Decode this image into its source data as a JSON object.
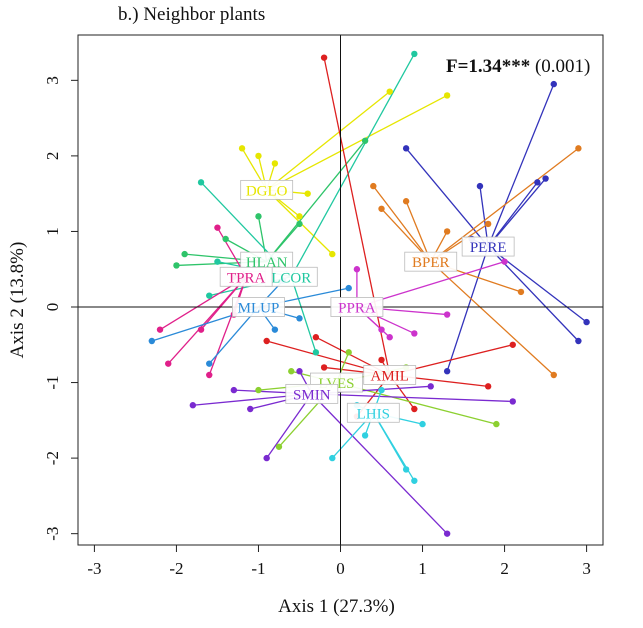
{
  "panel_title": "b.) Neighbor plants",
  "stat": {
    "f_label": "F=1.34",
    "stars": "***",
    "p_value": "(0.001)"
  },
  "chart_data": {
    "type": "scatter",
    "subtype": "ordination-spider-plot",
    "title": "",
    "xlabel": "Axis 1 (27.3%)",
    "ylabel": "Axis 2 (13.8%)",
    "xlim": [
      -3.2,
      3.2
    ],
    "ylim": [
      -3.15,
      3.6
    ],
    "x_ticks": [
      -3,
      -2,
      -1,
      0,
      1,
      2,
      3
    ],
    "y_ticks": [
      -3,
      -2,
      -1,
      0,
      1,
      2,
      3
    ],
    "x_tick_labels": [
      "-3",
      "-2",
      "-1",
      "0",
      "1",
      "2",
      "3"
    ],
    "y_tick_labels": [
      "-3",
      "-2",
      "-1",
      "0",
      "1",
      "2",
      "3"
    ],
    "reference_lines": {
      "x": 0,
      "y": 0
    },
    "grid": false,
    "series": [
      {
        "name": "DGLO",
        "color": "#e6e600",
        "centroid": [
          -0.9,
          1.55
        ],
        "points": [
          [
            -1.2,
            2.1
          ],
          [
            -1.0,
            2.0
          ],
          [
            -0.8,
            1.9
          ],
          [
            -0.4,
            1.5
          ],
          [
            -0.5,
            1.2
          ],
          [
            -0.1,
            0.7
          ],
          [
            1.3,
            2.8
          ],
          [
            0.6,
            2.85
          ]
        ]
      },
      {
        "name": "PERE",
        "color": "#3333bb",
        "centroid": [
          1.8,
          0.8
        ],
        "points": [
          [
            0.8,
            2.1
          ],
          [
            1.7,
            1.6
          ],
          [
            2.6,
            2.95
          ],
          [
            2.4,
            1.65
          ],
          [
            2.5,
            1.7
          ],
          [
            2.9,
            -0.45
          ],
          [
            3.0,
            -0.2
          ],
          [
            1.3,
            -0.85
          ],
          [
            1.6,
            0.9
          ]
        ]
      },
      {
        "name": "BPER",
        "color": "#e07b20",
        "centroid": [
          1.1,
          0.6
        ],
        "points": [
          [
            0.4,
            1.6
          ],
          [
            0.5,
            1.3
          ],
          [
            0.8,
            1.4
          ],
          [
            2.9,
            2.1
          ],
          [
            2.2,
            0.2
          ],
          [
            2.6,
            -0.9
          ],
          [
            1.3,
            1.0
          ],
          [
            1.8,
            1.1
          ]
        ]
      },
      {
        "name": "HLAN",
        "color": "#2ec46a",
        "centroid": [
          -0.9,
          0.6
        ],
        "points": [
          [
            -1.9,
            0.7
          ],
          [
            -2.0,
            0.55
          ],
          [
            -1.4,
            0.9
          ],
          [
            -1.0,
            1.2
          ],
          [
            -0.5,
            1.1
          ],
          [
            0.3,
            2.2
          ]
        ]
      },
      {
        "name": "LCOR",
        "color": "#20c8a0",
        "centroid": [
          -0.6,
          0.4
        ],
        "points": [
          [
            -1.7,
            1.65
          ],
          [
            -1.5,
            0.6
          ],
          [
            0.9,
            3.35
          ],
          [
            -1.6,
            0.15
          ],
          [
            -0.3,
            -0.6
          ]
        ]
      },
      {
        "name": "TPRA",
        "color": "#e0208a",
        "centroid": [
          -1.15,
          0.4
        ],
        "points": [
          [
            -2.2,
            -0.3
          ],
          [
            -2.1,
            -0.75
          ],
          [
            -1.5,
            1.05
          ],
          [
            -1.3,
            0.4
          ],
          [
            -1.7,
            -0.3
          ],
          [
            -1.3,
            -0.1
          ],
          [
            -1.6,
            -0.9
          ]
        ]
      },
      {
        "name": "MLUP",
        "color": "#2a8ad8",
        "centroid": [
          -1.0,
          0.0
        ],
        "points": [
          [
            -2.3,
            -0.45
          ],
          [
            -1.6,
            -0.75
          ],
          [
            -0.7,
            0.35
          ],
          [
            -0.8,
            -0.3
          ],
          [
            -0.5,
            -0.15
          ],
          [
            0.1,
            0.25
          ]
        ]
      },
      {
        "name": "PPRA",
        "color": "#cc33cc",
        "centroid": [
          0.2,
          0.0
        ],
        "points": [
          [
            0.2,
            0.5
          ],
          [
            0.6,
            -0.4
          ],
          [
            0.9,
            -0.35
          ],
          [
            1.3,
            -0.1
          ],
          [
            2.0,
            0.6
          ],
          [
            0.5,
            -0.3
          ]
        ]
      },
      {
        "name": "AMIL",
        "color": "#dd2020",
        "centroid": [
          0.6,
          -0.9
        ],
        "points": [
          [
            -0.2,
            3.3
          ],
          [
            -0.9,
            -0.45
          ],
          [
            -0.3,
            -0.4
          ],
          [
            0.5,
            -0.7
          ],
          [
            2.1,
            -0.5
          ],
          [
            1.8,
            -1.05
          ],
          [
            0.2,
            -1.45
          ],
          [
            0.9,
            -1.35
          ],
          [
            -0.2,
            -0.8
          ]
        ]
      },
      {
        "name": "LVES",
        "color": "#8cd030",
        "centroid": [
          -0.05,
          -1.0
        ],
        "points": [
          [
            -1.0,
            -1.1
          ],
          [
            -0.6,
            -0.85
          ],
          [
            0.1,
            -0.6
          ],
          [
            0.8,
            -0.8
          ],
          [
            1.9,
            -1.55
          ],
          [
            -0.75,
            -1.85
          ]
        ]
      },
      {
        "name": "SMIN",
        "color": "#7a2ad0",
        "centroid": [
          -0.35,
          -1.15
        ],
        "points": [
          [
            -1.8,
            -1.3
          ],
          [
            -1.3,
            -1.1
          ],
          [
            -1.1,
            -1.35
          ],
          [
            -0.5,
            -0.85
          ],
          [
            1.1,
            -1.05
          ],
          [
            2.1,
            -1.25
          ],
          [
            1.3,
            -3.0
          ],
          [
            -0.9,
            -2.0
          ]
        ]
      },
      {
        "name": "LHIS",
        "color": "#30d0e0",
        "centroid": [
          0.4,
          -1.4
        ],
        "points": [
          [
            -0.1,
            -2.0
          ],
          [
            0.3,
            -1.7
          ],
          [
            0.8,
            -2.15
          ],
          [
            1.0,
            -1.55
          ],
          [
            0.9,
            -2.3
          ],
          [
            0.5,
            -1.1
          ],
          [
            0.2,
            -1.3
          ]
        ]
      }
    ],
    "annotation": "F=1.34*** (0.001)"
  }
}
